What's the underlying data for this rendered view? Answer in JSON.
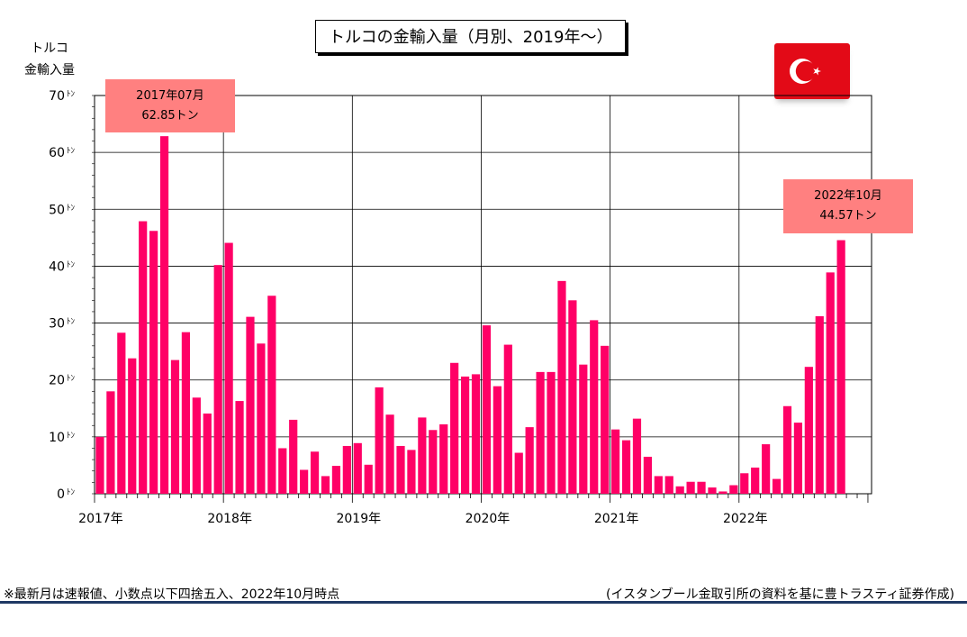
{
  "title": "トルコの金輸入量（月別、2019年～）",
  "ylabel_line1": "トルコ",
  "ylabel_line2": "金輸入量",
  "note_left": "※最新月は速報値、小数点以下四捨五入、2022年10月時点",
  "note_right": "(イスタンブール金取引所の資料を基に豊トラスティ証券作成)",
  "flag_icon": "turkey-flag-icon",
  "callouts": {
    "peak": {
      "line1": "2017年07月",
      "line2": "62.85トン"
    },
    "latest": {
      "line1": "2022年10月",
      "line2": "44.57トン"
    }
  },
  "colors": {
    "bar": "#ff0066",
    "callout": "#ff8080",
    "flag": "#e30a17",
    "rule": "#1f3864"
  },
  "chart_data": {
    "type": "bar",
    "title": "トルコの金輸入量（月別、2019年～）",
    "ylabel": "トルコ 金輸入量",
    "y_unit": "ﾄﾝ",
    "ylim": [
      0,
      70
    ],
    "yticks": [
      0,
      10,
      20,
      30,
      40,
      50,
      60,
      70
    ],
    "grid": true,
    "x_start": "2017-01",
    "year_labels": [
      "2017年",
      "2018年",
      "2019年",
      "2020年",
      "2021年",
      "2022年"
    ],
    "values": [
      10.0,
      18.0,
      28.3,
      23.8,
      47.9,
      46.2,
      62.85,
      23.5,
      28.4,
      16.9,
      14.1,
      40.2,
      44.1,
      16.3,
      31.1,
      26.4,
      34.8,
      8.0,
      13.0,
      4.2,
      7.4,
      3.1,
      4.9,
      8.4,
      8.9,
      5.1,
      18.7,
      13.9,
      8.4,
      7.7,
      13.4,
      11.2,
      12.2,
      23.0,
      20.6,
      21.0,
      29.6,
      18.9,
      26.2,
      7.2,
      11.7,
      21.4,
      21.4,
      37.4,
      34.0,
      22.7,
      30.5,
      26.0,
      11.3,
      9.4,
      13.2,
      6.5,
      3.1,
      3.1,
      1.3,
      2.1,
      2.1,
      1.1,
      0.4,
      1.5,
      3.6,
      4.6,
      8.7,
      2.6,
      15.4,
      12.5,
      22.3,
      31.2,
      38.9,
      44.57
    ]
  }
}
